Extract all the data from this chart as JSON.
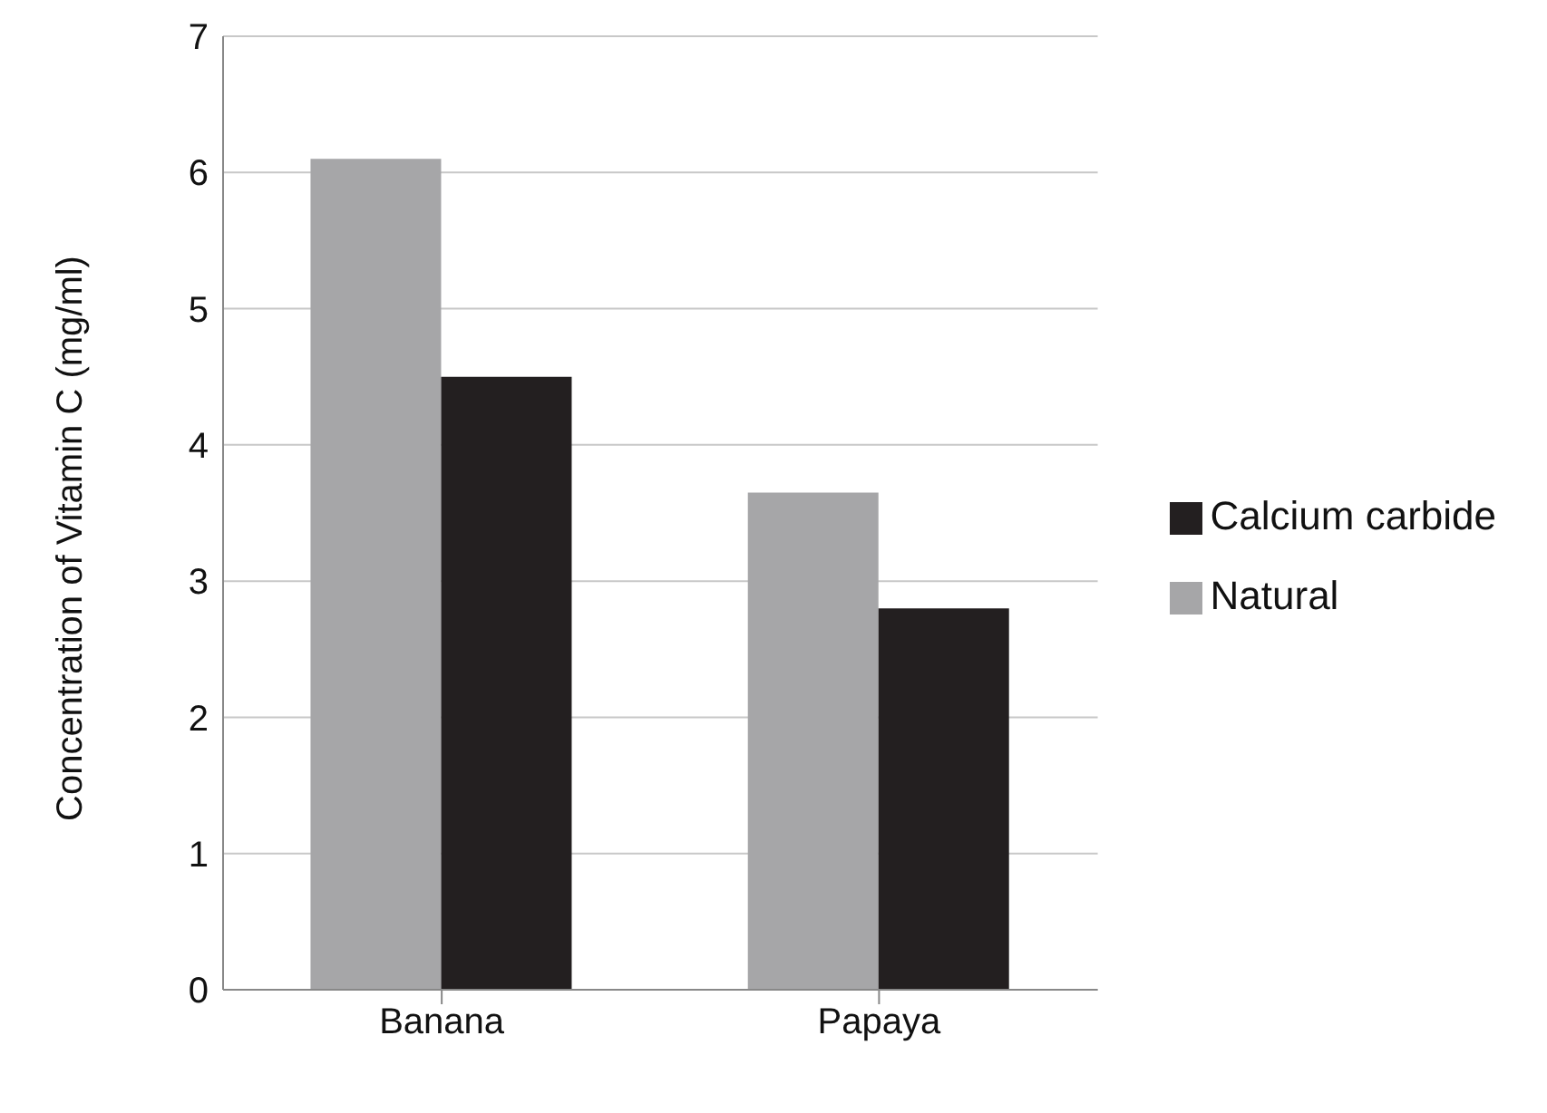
{
  "chart_data": {
    "type": "bar",
    "ylabel": "Concentration of Vitamin C (mg/ml)",
    "categories": [
      "Banana",
      "Papaya"
    ],
    "series": [
      {
        "name": "Natural",
        "color": "#a6a6a8",
        "values": [
          6.1,
          3.65
        ]
      },
      {
        "name": "Calcium carbide",
        "color": "#231f20",
        "values": [
          4.5,
          2.8
        ]
      }
    ],
    "ylim": [
      0,
      7
    ],
    "yticks": [
      0,
      1,
      2,
      3,
      4,
      5,
      6,
      7
    ],
    "grid": "y",
    "legend": "right"
  }
}
